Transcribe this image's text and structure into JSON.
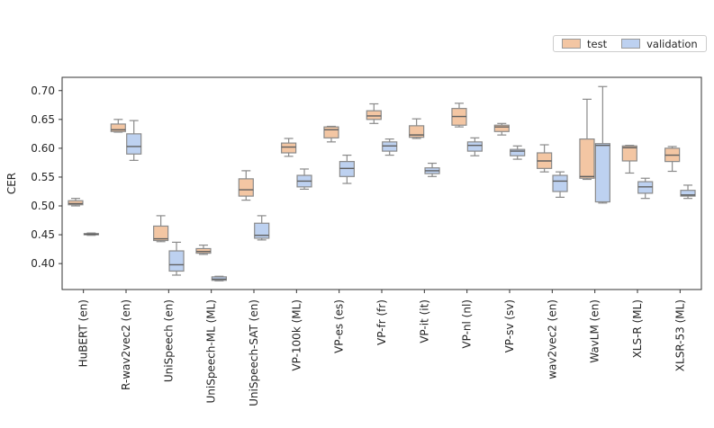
{
  "figure": {
    "ylabel": "CER",
    "legend": {
      "items": [
        {
          "label": "test",
          "color": "#f3c6a3"
        },
        {
          "label": "validation",
          "color": "#bdd1f0"
        }
      ]
    }
  },
  "chart_data": {
    "type": "boxplot",
    "title": "",
    "xlabel": "",
    "ylabel": "CER",
    "ylim": [
      0.355,
      0.723
    ],
    "yticks": [
      0.4,
      0.45,
      0.5,
      0.55,
      0.6,
      0.65,
      0.7
    ],
    "grid": false,
    "legend_position": "upper right, above axes",
    "categories": [
      "HuBERT (en)",
      "R-wav2vec2 (en)",
      "UniSpeech (en)",
      "UniSpeech-ML (ML)",
      "UniSpeech-SAT (en)",
      "VP-100k (ML)",
      "VP-es (es)",
      "VP-fr (fr)",
      "VP-it (it)",
      "VP-nl (nl)",
      "VP-sv (sv)",
      "wav2vec2 (en)",
      "WavLM (en)",
      "XLS-R (ML)",
      "XLSR-53 (ML)"
    ],
    "series": [
      {
        "name": "test",
        "fill_color": "#f3c6a3",
        "edge_color": "#8a8a8a",
        "median_color": "#5f5f5f",
        "boxes": [
          {
            "whislo": 0.5,
            "q1": 0.502,
            "med": 0.504,
            "q3": 0.509,
            "whishi": 0.513
          },
          {
            "whislo": 0.628,
            "q1": 0.629,
            "med": 0.632,
            "q3": 0.642,
            "whishi": 0.65
          },
          {
            "whislo": 0.438,
            "q1": 0.44,
            "med": 0.443,
            "q3": 0.465,
            "whishi": 0.483
          },
          {
            "whislo": 0.416,
            "q1": 0.418,
            "med": 0.421,
            "q3": 0.426,
            "whishi": 0.432
          },
          {
            "whislo": 0.51,
            "q1": 0.517,
            "med": 0.528,
            "q3": 0.547,
            "whishi": 0.561
          },
          {
            "whislo": 0.586,
            "q1": 0.592,
            "med": 0.602,
            "q3": 0.609,
            "whishi": 0.617
          },
          {
            "whislo": 0.611,
            "q1": 0.618,
            "med": 0.632,
            "q3": 0.637,
            "whishi": 0.638
          },
          {
            "whislo": 0.643,
            "q1": 0.65,
            "med": 0.656,
            "q3": 0.665,
            "whishi": 0.677
          },
          {
            "whislo": 0.617,
            "q1": 0.619,
            "med": 0.623,
            "q3": 0.639,
            "whishi": 0.651
          },
          {
            "whislo": 0.637,
            "q1": 0.64,
            "med": 0.655,
            "q3": 0.669,
            "whishi": 0.678
          },
          {
            "whislo": 0.623,
            "q1": 0.629,
            "med": 0.637,
            "q3": 0.64,
            "whishi": 0.643
          },
          {
            "whislo": 0.559,
            "q1": 0.565,
            "med": 0.578,
            "q3": 0.592,
            "whishi": 0.606
          },
          {
            "whislo": 0.546,
            "q1": 0.548,
            "med": 0.551,
            "q3": 0.616,
            "whishi": 0.685
          },
          {
            "whislo": 0.557,
            "q1": 0.578,
            "med": 0.601,
            "q3": 0.604,
            "whishi": 0.605
          },
          {
            "whislo": 0.56,
            "q1": 0.577,
            "med": 0.588,
            "q3": 0.6,
            "whishi": 0.603
          }
        ]
      },
      {
        "name": "validation",
        "fill_color": "#bdd1f0",
        "edge_color": "#8a8a8a",
        "median_color": "#5f5f5f",
        "boxes": [
          {
            "whislo": 0.449,
            "q1": 0.45,
            "med": 0.451,
            "q3": 0.452,
            "whishi": 0.453
          },
          {
            "whislo": 0.579,
            "q1": 0.59,
            "med": 0.603,
            "q3": 0.625,
            "whishi": 0.648
          },
          {
            "whislo": 0.38,
            "q1": 0.387,
            "med": 0.398,
            "q3": 0.422,
            "whishi": 0.437
          },
          {
            "whislo": 0.37,
            "q1": 0.371,
            "med": 0.373,
            "q3": 0.377,
            "whishi": 0.378
          },
          {
            "whislo": 0.441,
            "q1": 0.444,
            "med": 0.449,
            "q3": 0.47,
            "whishi": 0.483
          },
          {
            "whislo": 0.529,
            "q1": 0.533,
            "med": 0.543,
            "q3": 0.553,
            "whishi": 0.564
          },
          {
            "whislo": 0.539,
            "q1": 0.551,
            "med": 0.565,
            "q3": 0.577,
            "whishi": 0.588
          },
          {
            "whislo": 0.588,
            "q1": 0.595,
            "med": 0.604,
            "q3": 0.611,
            "whishi": 0.616
          },
          {
            "whislo": 0.551,
            "q1": 0.556,
            "med": 0.561,
            "q3": 0.566,
            "whishi": 0.574
          },
          {
            "whislo": 0.587,
            "q1": 0.595,
            "med": 0.605,
            "q3": 0.611,
            "whishi": 0.618
          },
          {
            "whislo": 0.581,
            "q1": 0.587,
            "med": 0.595,
            "q3": 0.598,
            "whishi": 0.604
          },
          {
            "whislo": 0.515,
            "q1": 0.525,
            "med": 0.543,
            "q3": 0.553,
            "whishi": 0.559
          },
          {
            "whislo": 0.505,
            "q1": 0.507,
            "med": 0.605,
            "q3": 0.608,
            "whishi": 0.707
          },
          {
            "whislo": 0.513,
            "q1": 0.522,
            "med": 0.533,
            "q3": 0.542,
            "whishi": 0.548
          },
          {
            "whislo": 0.513,
            "q1": 0.517,
            "med": 0.519,
            "q3": 0.527,
            "whishi": 0.536
          }
        ]
      }
    ]
  }
}
